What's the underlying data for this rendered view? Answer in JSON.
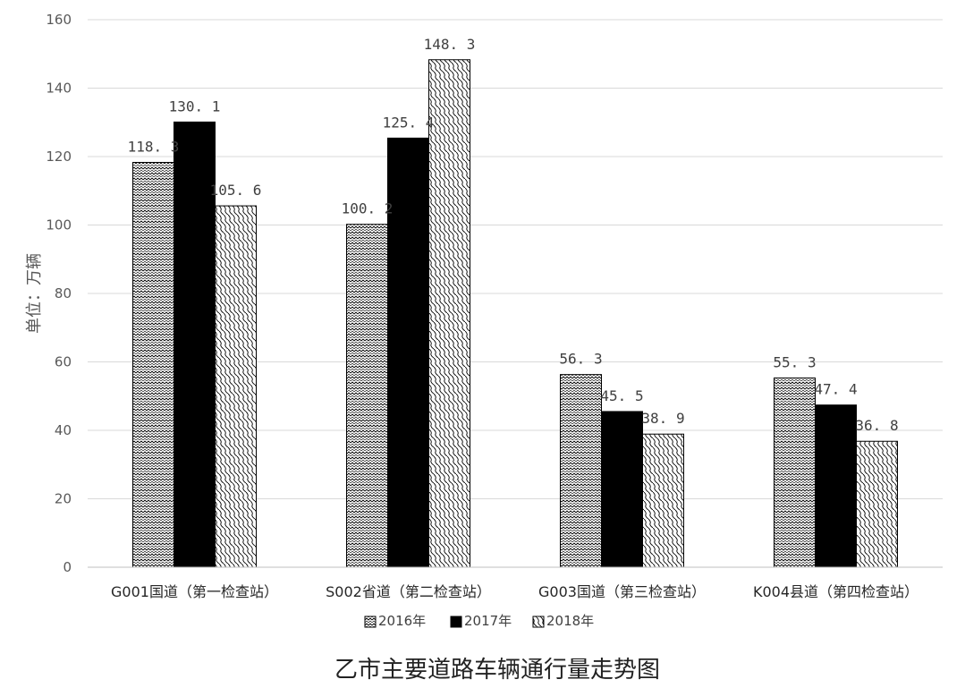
{
  "chart_data": {
    "type": "bar",
    "title": "乙市主要道路车辆通行量走势图",
    "ylabel": "单位：万辆",
    "xlabel": "",
    "ylim": [
      0,
      160
    ],
    "yticks": [
      0,
      20,
      40,
      60,
      80,
      100,
      120,
      140,
      160
    ],
    "grid": true,
    "legend_position": "bottom",
    "categories": [
      "G001国道（第一检查站）",
      "S002省道（第二检查站）",
      "G003国道（第三检查站）",
      "K004县道（第四检查站）"
    ],
    "series": [
      {
        "name": "2016年",
        "values": [
          118.3,
          100.2,
          56.3,
          55.3
        ],
        "labels": [
          "118. 3",
          "100. 2",
          "56. 3",
          "55. 3"
        ]
      },
      {
        "name": "2017年",
        "values": [
          130.1,
          125.4,
          45.5,
          47.4
        ],
        "labels": [
          "130. 1",
          "125. 4",
          "45. 5",
          "47. 4"
        ]
      },
      {
        "name": "2018年",
        "values": [
          105.6,
          148.3,
          38.9,
          36.8
        ],
        "labels": [
          "105. 6",
          "148. 3",
          "38. 9",
          "36. 8"
        ]
      }
    ]
  }
}
